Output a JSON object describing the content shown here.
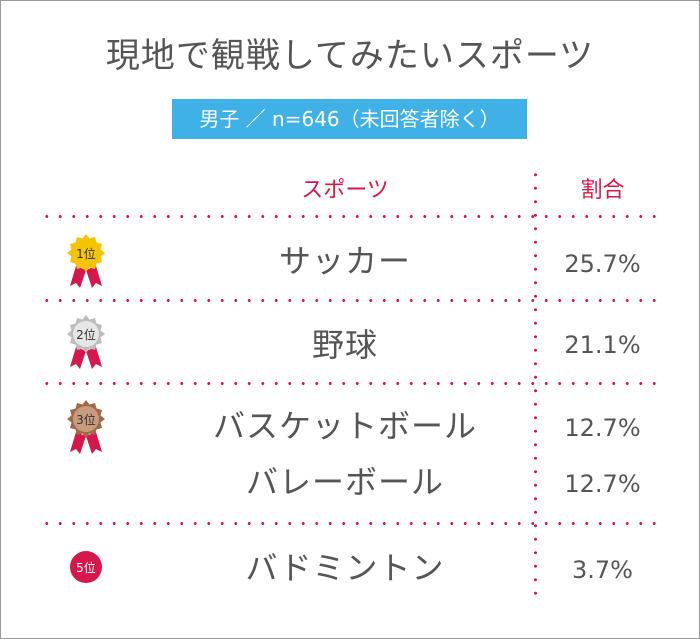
{
  "title": "現地で観戦してみたいスポーツ",
  "subtitle": "男子 ／ n=646（未回答者除く）",
  "columns": {
    "sport": "スポーツ",
    "share": "割合"
  },
  "colors": {
    "accent": "#d6174b",
    "banner": "#3fb1e6",
    "gold": "#f5c400",
    "silver": "#bdbdbd",
    "bronze": "#a0694a"
  },
  "ranks": [
    {
      "label": "1位",
      "medal": "gold-medal-icon"
    },
    {
      "label": "2位",
      "medal": "silver-medal-icon"
    },
    {
      "label": "3位",
      "medal": "bronze-medal-icon"
    },
    {
      "label": "5位",
      "medal": "red-circle-badge-icon"
    }
  ],
  "rows": [
    {
      "sport": "サッカー",
      "share": "25.7%"
    },
    {
      "sport": "野球",
      "share": "21.1%"
    },
    {
      "sport": "バスケットボール",
      "share": "12.7%"
    },
    {
      "sport": "バレーボール",
      "share": "12.7%"
    },
    {
      "sport": "バドミントン",
      "share": "3.7%"
    }
  ]
}
